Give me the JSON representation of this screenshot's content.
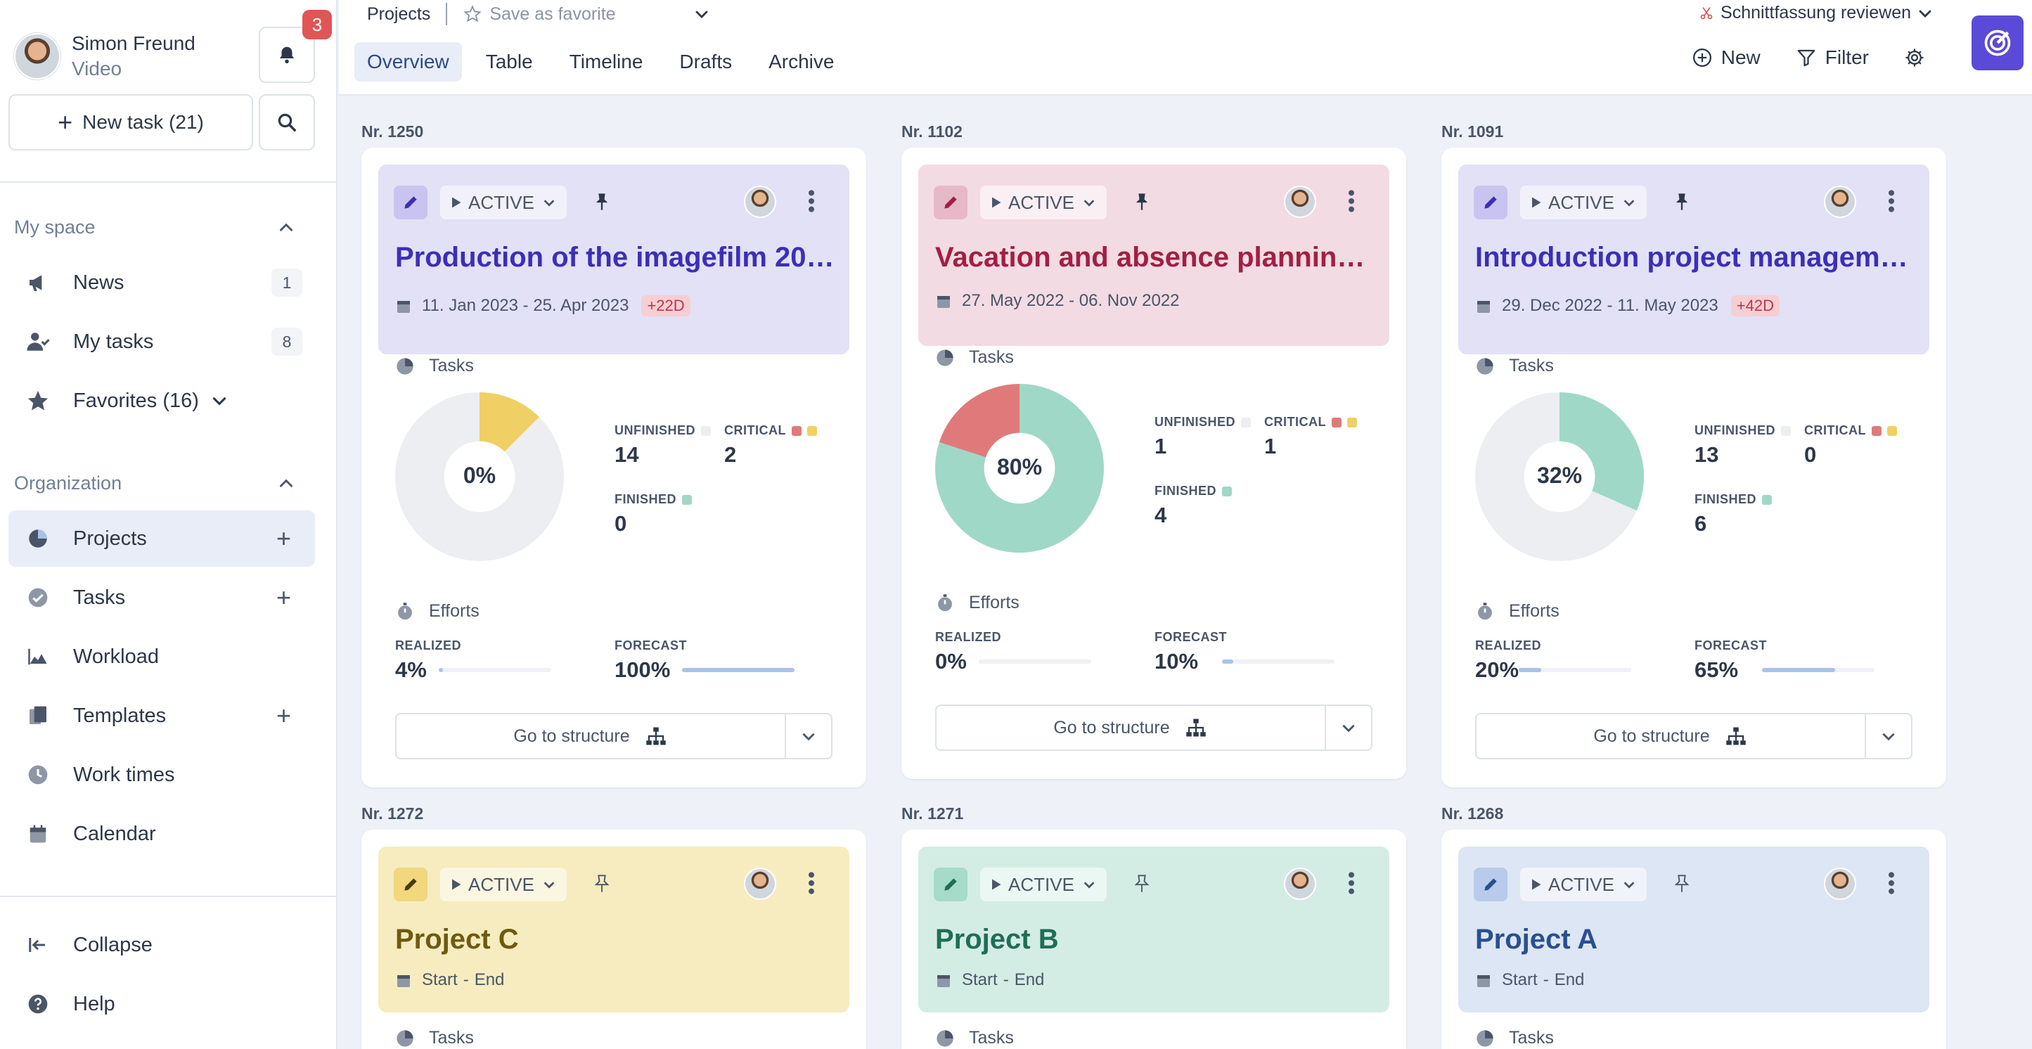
{
  "user": {
    "name": "Simon Freund",
    "subtitle": "Video",
    "notifications": "3"
  },
  "sidebar": {
    "new_task_label": "New task (21)",
    "my_space_label": "My space",
    "organization_label": "Organization",
    "my_space_items": [
      {
        "label": "News",
        "count": "1",
        "icon": "megaphone-icon"
      },
      {
        "label": "My tasks",
        "count": "8",
        "icon": "user-check-icon"
      },
      {
        "label": "Favorites (16)",
        "icon": "star-icon"
      }
    ],
    "org_items": [
      {
        "label": "Projects",
        "icon": "pie-chart-icon",
        "active": true
      },
      {
        "label": "Tasks",
        "icon": "check-circle-icon"
      },
      {
        "label": "Workload",
        "icon": "area-chart-icon"
      },
      {
        "label": "Templates",
        "icon": "copy-icon"
      },
      {
        "label": "Work times",
        "icon": "clock-icon"
      },
      {
        "label": "Calendar",
        "icon": "calendar-icon"
      }
    ],
    "collapse_label": "Collapse",
    "help_label": "Help"
  },
  "topbar": {
    "breadcrumb": "Projects",
    "save_favorite": "Save as favorite",
    "current_task": "Schnittfassung reviewen",
    "tabs": [
      "Overview",
      "Table",
      "Timeline",
      "Drafts",
      "Archive"
    ],
    "active_tab": "Overview",
    "new_label": "New",
    "filter_label": "Filter"
  },
  "projects": [
    {
      "nr": "Nr. 1250",
      "status": "ACTIVE",
      "theme": "purple",
      "title": "Production of the imagefilm 20…",
      "dates": "11. Jan 2023 - 25. Apr 2023",
      "overdue": "+22D",
      "tasks_label": "Tasks",
      "percent": "0%",
      "percent_value": 0,
      "unfinished_label": "UNFINISHED",
      "unfinished": "14",
      "critical_label": "CRITICAL",
      "critical": "2",
      "finished_label": "FINISHED",
      "finished": "0",
      "chart_segments": {
        "finished": 0,
        "critical": 2,
        "unfinished": 14
      },
      "efforts_label": "Efforts",
      "realized_label": "REALIZED",
      "realized": "4%",
      "realized_value": 0.04,
      "forecast_label": "FORECAST",
      "forecast": "100%",
      "forecast_value": 1.0,
      "goto_label": "Go to structure"
    },
    {
      "nr": "Nr. 1102",
      "status": "ACTIVE",
      "theme": "pink",
      "title": "Vacation and absence planning…",
      "dates": "27. May 2022 - 06. Nov 2022",
      "overdue": "",
      "tasks_label": "Tasks",
      "percent": "80%",
      "percent_value": 0.8,
      "unfinished_label": "UNFINISHED",
      "unfinished": "1",
      "critical_label": "CRITICAL",
      "critical": "1",
      "finished_label": "FINISHED",
      "finished": "4",
      "chart_segments": {
        "finished": 4,
        "critical": 1,
        "unfinished": 0
      },
      "efforts_label": "Efforts",
      "realized_label": "REALIZED",
      "realized": "0%",
      "realized_value": 0,
      "forecast_label": "FORECAST",
      "forecast": "10%",
      "forecast_value": 0.1,
      "goto_label": "Go to structure"
    },
    {
      "nr": "Nr. 1091",
      "status": "ACTIVE",
      "theme": "purple",
      "title": "Introduction project managem…",
      "dates": "29. Dec 2022 - 11. May 2023",
      "overdue": "+42D",
      "tasks_label": "Tasks",
      "percent": "32%",
      "percent_value": 0.32,
      "unfinished_label": "UNFINISHED",
      "unfinished": "13",
      "critical_label": "CRITICAL",
      "critical": "0",
      "finished_label": "FINISHED",
      "finished": "6",
      "chart_segments": {
        "finished": 6,
        "critical": 0,
        "unfinished": 13
      },
      "efforts_label": "Efforts",
      "realized_label": "REALIZED",
      "realized": "20%",
      "realized_value": 0.2,
      "forecast_label": "FORECAST",
      "forecast": "65%",
      "forecast_value": 0.65,
      "goto_label": "Go to structure"
    },
    {
      "nr": "Nr. 1272",
      "status": "ACTIVE",
      "theme": "yellow",
      "title": "Project C",
      "date_start": "Start",
      "date_sep": "-",
      "date_end": "End",
      "tasks_label": "Tasks"
    },
    {
      "nr": "Nr. 1271",
      "status": "ACTIVE",
      "theme": "green",
      "title": "Project B",
      "date_start": "Start",
      "date_sep": "-",
      "date_end": "End",
      "tasks_label": "Tasks"
    },
    {
      "nr": "Nr. 1268",
      "status": "ACTIVE",
      "theme": "blue",
      "title": "Project A",
      "date_start": "Start",
      "date_sep": "-",
      "date_end": "End",
      "tasks_label": "Tasks"
    }
  ],
  "colors": {
    "finished": "#9fd8c7",
    "critical": "#e07a7a",
    "critical_alt": "#f0d064",
    "unfinished": "#eceef1",
    "accent": "#5b4ad8",
    "notification": "#e05555"
  }
}
